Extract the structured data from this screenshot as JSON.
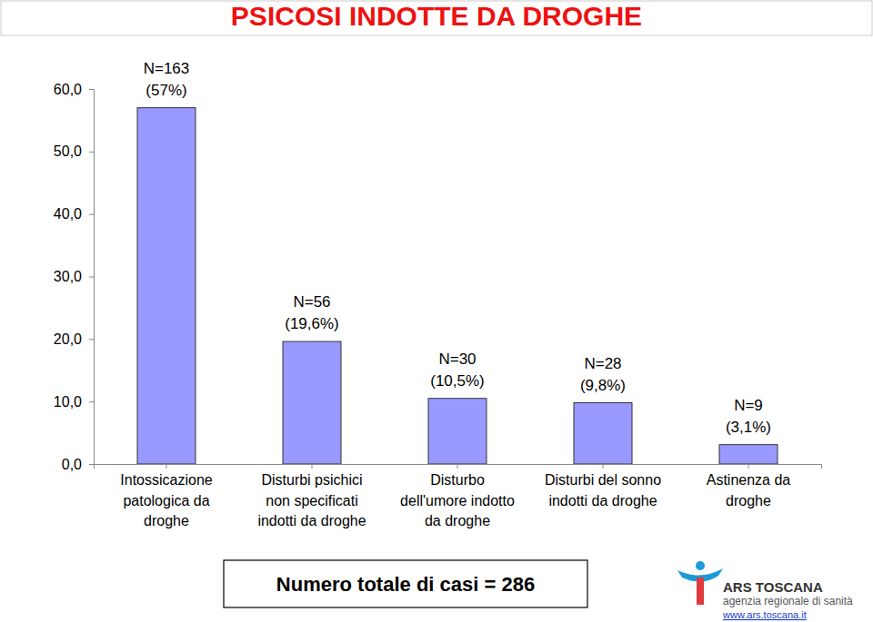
{
  "chart_data": {
    "type": "bar",
    "title": "PSICOSI INDOTTE DA DROGHE",
    "categories": [
      "Intossicazione\npatologica da\ndroghe",
      "Disturbi psichici\nnon specificati\nindotti da droghe",
      "Disturbo\ndell'umore indotto\nda droghe",
      "Disturbi del sonno\nindotti da droghe",
      "Astinenza da\ndroghe"
    ],
    "values": [
      57,
      19.6,
      10.5,
      9.8,
      3.1
    ],
    "value_labels": [
      "N=163\n(57%)",
      "N=56\n(19,6%)",
      "N=30\n(10,5%)",
      "N=28\n(9,8%)",
      "N=9\n(3,1%)"
    ],
    "data_labels": true,
    "color": "#9999ff",
    "ylim": [
      0,
      60
    ],
    "yticks": [
      {
        "value": 0,
        "label": "0,0"
      },
      {
        "value": 10,
        "label": "10,0"
      },
      {
        "value": 20,
        "label": "20,0"
      },
      {
        "value": 30,
        "label": "30,0"
      },
      {
        "value": 40,
        "label": "40,0"
      },
      {
        "value": 50,
        "label": "50,0"
      },
      {
        "value": 60,
        "label": "60,0"
      }
    ],
    "grid": false,
    "annotations": [
      "Numero totale di casi = 286"
    ],
    "source": [
      "ARS TOSCANA",
      "agenzia regionale di sanità",
      "www.ars.toscana.it"
    ]
  }
}
